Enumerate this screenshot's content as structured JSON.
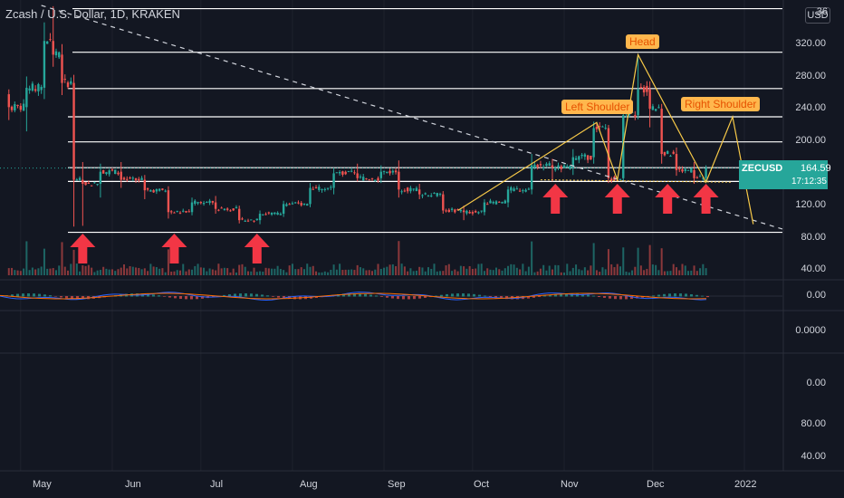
{
  "header": {
    "title": "Zcash / U.S. Dollar, 1D, KRAKEN",
    "currency_button": "USD"
  },
  "price_label": {
    "symbol": "ZECUSD",
    "price": "164.59",
    "countdown": "17:12:35"
  },
  "annotations": {
    "head": "Head",
    "left_shoulder": "Left Shoulder",
    "right_shoulder": "Right Shoulder"
  },
  "price_axis": {
    "labels": [
      "320.00",
      "280.00",
      "240.00",
      "200.00",
      "120.00",
      "80.00",
      "40.00"
    ],
    "cut_label": "36"
  },
  "indicator_axis": {
    "macd_label": "0.00",
    "pane2_label": "0.0000",
    "pane3_labels": [
      "0.00",
      "80.00",
      "40.00"
    ]
  },
  "time_axis": {
    "labels": [
      "May",
      "Jun",
      "Jul",
      "Aug",
      "Sep",
      "Oct",
      "Nov",
      "Dec",
      "2022"
    ]
  },
  "colors": {
    "background": "#131722",
    "up": "#26a69a",
    "down": "#ef5350",
    "arrow": "#f23645",
    "pattern": "#f7c948"
  },
  "chart_data": {
    "type": "candlestick",
    "symbol": "ZECUSD",
    "ylim": [
      30,
      365
    ],
    "horizontal_levels": [
      85,
      148,
      165,
      197,
      228,
      263,
      308,
      362
    ],
    "support_arrows_dates": [
      "2021-05-22",
      "2021-06-22",
      "2021-07-20",
      "2021-10-29",
      "2021-11-19",
      "2021-12-06",
      "2021-12-19"
    ],
    "last_price": 164.59,
    "candles": [
      {
        "date": "2021-04-27",
        "open": 256,
        "high": 262,
        "low": 224,
        "close": 240
      },
      {
        "date": "2021-05-03",
        "open": 240,
        "high": 278,
        "low": 210,
        "close": 264
      },
      {
        "date": "2021-05-09",
        "open": 264,
        "high": 345,
        "low": 250,
        "close": 322
      },
      {
        "date": "2021-05-12",
        "open": 322,
        "high": 365,
        "low": 290,
        "close": 305
      },
      {
        "date": "2021-05-15",
        "open": 305,
        "high": 318,
        "low": 255,
        "close": 270
      },
      {
        "date": "2021-05-19",
        "open": 270,
        "high": 280,
        "low": 92,
        "close": 150
      },
      {
        "date": "2021-05-22",
        "open": 150,
        "high": 172,
        "low": 93,
        "close": 145
      },
      {
        "date": "2021-05-28",
        "open": 145,
        "high": 170,
        "low": 128,
        "close": 160
      },
      {
        "date": "2021-06-04",
        "open": 160,
        "high": 172,
        "low": 140,
        "close": 150
      },
      {
        "date": "2021-06-12",
        "open": 150,
        "high": 156,
        "low": 126,
        "close": 137
      },
      {
        "date": "2021-06-20",
        "open": 137,
        "high": 142,
        "low": 102,
        "close": 110
      },
      {
        "date": "2021-06-28",
        "open": 110,
        "high": 128,
        "low": 106,
        "close": 122
      },
      {
        "date": "2021-07-06",
        "open": 122,
        "high": 130,
        "low": 108,
        "close": 114
      },
      {
        "date": "2021-07-14",
        "open": 114,
        "high": 118,
        "low": 96,
        "close": 100
      },
      {
        "date": "2021-07-21",
        "open": 100,
        "high": 112,
        "low": 95,
        "close": 108
      },
      {
        "date": "2021-07-29",
        "open": 108,
        "high": 124,
        "low": 104,
        "close": 120
      },
      {
        "date": "2021-08-07",
        "open": 120,
        "high": 146,
        "low": 116,
        "close": 140
      },
      {
        "date": "2021-08-15",
        "open": 140,
        "high": 164,
        "low": 132,
        "close": 158
      },
      {
        "date": "2021-08-23",
        "open": 158,
        "high": 170,
        "low": 148,
        "close": 152
      },
      {
        "date": "2021-08-31",
        "open": 152,
        "high": 168,
        "low": 146,
        "close": 160
      },
      {
        "date": "2021-09-06",
        "open": 160,
        "high": 174,
        "low": 128,
        "close": 138
      },
      {
        "date": "2021-09-13",
        "open": 138,
        "high": 145,
        "low": 126,
        "close": 132
      },
      {
        "date": "2021-09-21",
        "open": 132,
        "high": 136,
        "low": 108,
        "close": 112
      },
      {
        "date": "2021-09-28",
        "open": 112,
        "high": 118,
        "low": 100,
        "close": 110
      },
      {
        "date": "2021-10-05",
        "open": 110,
        "high": 126,
        "low": 106,
        "close": 122
      },
      {
        "date": "2021-10-13",
        "open": 122,
        "high": 142,
        "low": 116,
        "close": 138
      },
      {
        "date": "2021-10-21",
        "open": 138,
        "high": 182,
        "low": 132,
        "close": 168
      },
      {
        "date": "2021-10-28",
        "open": 168,
        "high": 176,
        "low": 148,
        "close": 165
      },
      {
        "date": "2021-11-04",
        "open": 165,
        "high": 188,
        "low": 156,
        "close": 178
      },
      {
        "date": "2021-11-11",
        "open": 178,
        "high": 222,
        "low": 170,
        "close": 214
      },
      {
        "date": "2021-11-16",
        "open": 214,
        "high": 218,
        "low": 146,
        "close": 152
      },
      {
        "date": "2021-11-21",
        "open": 152,
        "high": 238,
        "low": 148,
        "close": 230
      },
      {
        "date": "2021-11-26",
        "open": 230,
        "high": 305,
        "low": 225,
        "close": 262
      },
      {
        "date": "2021-11-30",
        "open": 262,
        "high": 272,
        "low": 215,
        "close": 238
      },
      {
        "date": "2021-12-04",
        "open": 238,
        "high": 244,
        "low": 170,
        "close": 182
      },
      {
        "date": "2021-12-09",
        "open": 182,
        "high": 190,
        "low": 155,
        "close": 162
      },
      {
        "date": "2021-12-15",
        "open": 162,
        "high": 172,
        "low": 145,
        "close": 152
      },
      {
        "date": "2021-12-19",
        "open": 152,
        "high": 168,
        "low": 146,
        "close": 164.59
      }
    ]
  }
}
